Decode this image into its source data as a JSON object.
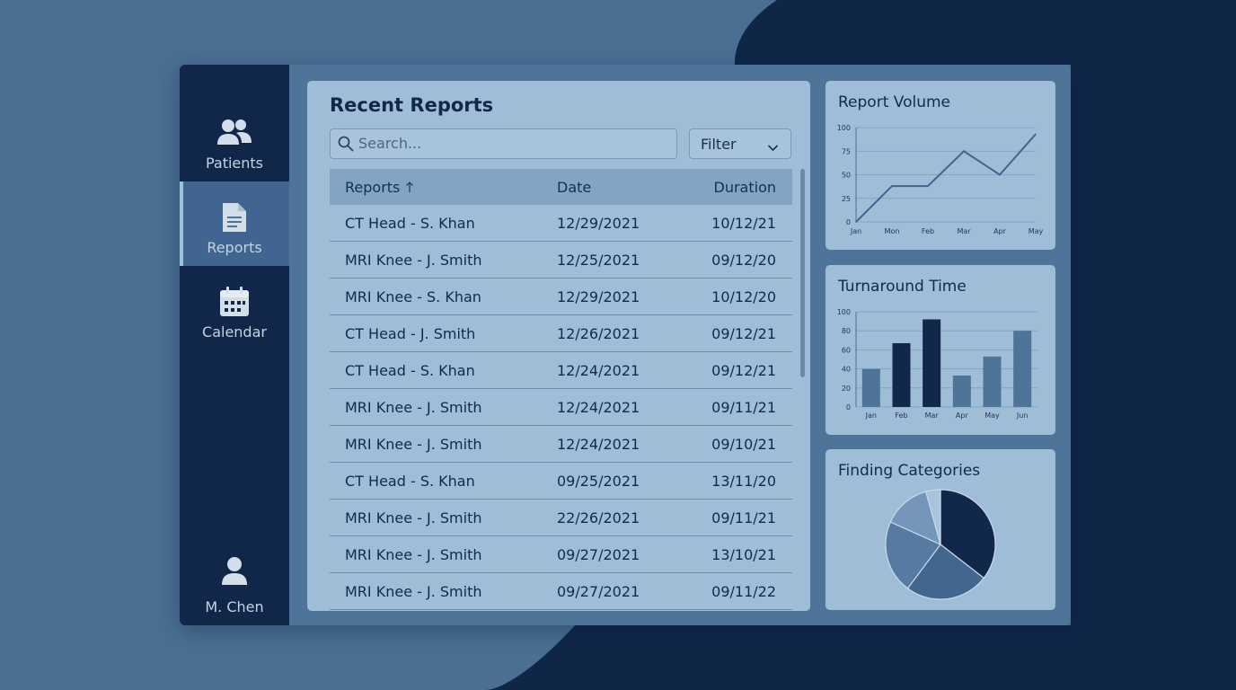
{
  "colors": {
    "background": "#4a6f93",
    "background_dark": "#0f2647",
    "sidebar": "#11274a",
    "panel": "#9fbdd7",
    "accent": "#3f6590",
    "bar_light": "#4f7499",
    "bar_dark": "#12284a"
  },
  "sidebar": {
    "items": [
      {
        "label": "Patients",
        "icon": "patients-icon",
        "active": false
      },
      {
        "label": "Reports",
        "icon": "document-icon",
        "active": true
      },
      {
        "label": "Calendar",
        "icon": "calendar-icon",
        "active": false
      }
    ],
    "user": {
      "name": "M. Chen",
      "icon": "user-icon"
    }
  },
  "reports": {
    "title": "Recent Reports",
    "search_placeholder": "Search...",
    "filter_label": "Filter",
    "columns": {
      "report": "Reports",
      "date": "Date",
      "duration": "Duration"
    },
    "sort_icon": "arrow-up-icon",
    "rows": [
      {
        "report": "CT Head - S. Khan",
        "date": "12/29/2021",
        "duration": "10/12/21"
      },
      {
        "report": "MRI Knee - J. Smith",
        "date": "12/25/2021",
        "duration": "09/12/20"
      },
      {
        "report": "MRI Knee - S. Khan",
        "date": "12/29/2021",
        "duration": "10/12/20"
      },
      {
        "report": "CT Head - J. Smith",
        "date": "12/26/2021",
        "duration": "09/12/21"
      },
      {
        "report": "CT Head - S. Khan",
        "date": "12/24/2021",
        "duration": "09/12/21"
      },
      {
        "report": "MRI Knee - J. Smith",
        "date": "12/24/2021",
        "duration": "09/11/21"
      },
      {
        "report": "MRI Knee - J. Smith",
        "date": "12/24/2021",
        "duration": "09/10/21"
      },
      {
        "report": "CT Head - S. Khan",
        "date": "09/25/2021",
        "duration": "13/11/20"
      },
      {
        "report": "MRI Knee - J. Smith",
        "date": "22/26/2021",
        "duration": "09/11/21"
      },
      {
        "report": "MRI Knee - J. Smith",
        "date": "09/27/2021",
        "duration": "13/10/21"
      },
      {
        "report": "MRI Knee - J. Smith",
        "date": "09/27/2021",
        "duration": "09/11/22"
      }
    ]
  },
  "chart_data": [
    {
      "type": "line",
      "title": "Report Volume",
      "categories": [
        "Jan",
        "Mon",
        "Feb",
        "Mar",
        "Apr",
        "May"
      ],
      "x": [
        0,
        1,
        2,
        3,
        4,
        5
      ],
      "values": [
        0,
        38,
        38,
        75,
        50,
        93
      ],
      "ylim": [
        0,
        100
      ],
      "yticks": [
        0,
        25,
        50,
        75,
        100
      ],
      "grid": true,
      "color": "#3f6590"
    },
    {
      "type": "bar",
      "title": "Turnaround Time",
      "categories": [
        "Jan",
        "Feb",
        "Mar",
        "Apr",
        "May",
        "Jun"
      ],
      "values": [
        40,
        67,
        92,
        33,
        53,
        80
      ],
      "bar_colors": [
        "#4f7499",
        "#12284a",
        "#12284a",
        "#4f7499",
        "#4f7499",
        "#4f7499"
      ],
      "ylim": [
        0,
        100
      ],
      "yticks": [
        0,
        20,
        40,
        60,
        80,
        100
      ],
      "grid": true
    },
    {
      "type": "pie",
      "title": "Finding Categories",
      "values": [
        33,
        23,
        20,
        13,
        4
      ],
      "colors": [
        "#12284a",
        "#42668e",
        "#557ba3",
        "#7496ba",
        "#a9c3dc"
      ]
    }
  ]
}
